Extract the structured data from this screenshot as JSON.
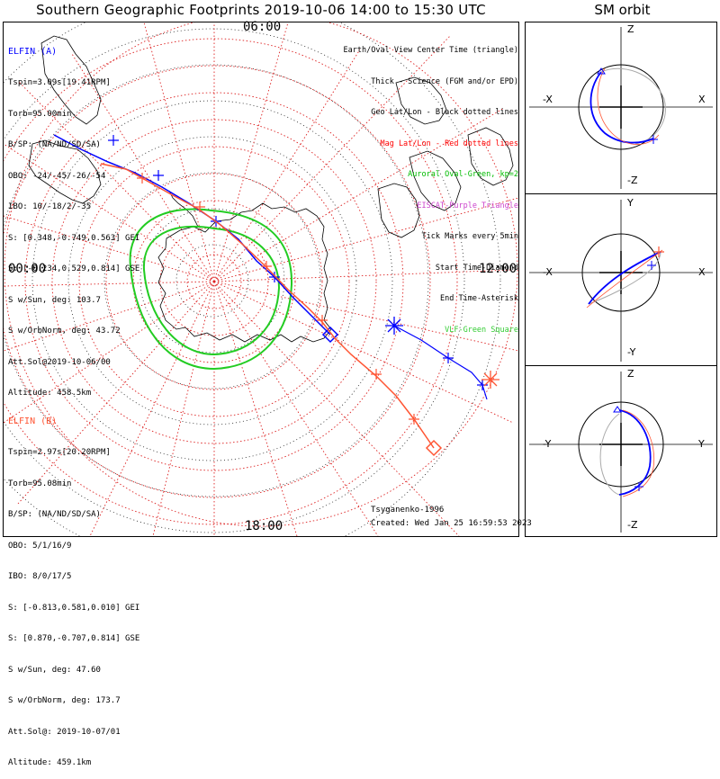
{
  "header": {
    "title": "Southern Geographic Footprints 2019-10-06 14:00 to 15:30 UTC",
    "sm_title": "SM orbit"
  },
  "clock_labels": {
    "top": "06:00",
    "left": "00:00",
    "right": "12:00",
    "bottom": "18:00"
  },
  "spacecraft": [
    {
      "name": "ELFIN (A)",
      "color": "#0000ff",
      "lines": [
        "Tspin=3.09s[19.41RPM]",
        "Torb=95.00min",
        "B/SP: (NA/ND/SD/SA)",
        "OBO: -24/-45/-26/-54",
        "IBO: 10/-18/2/-35",
        "S: [0.348,-0.749,0.563] GEI",
        "S: [-0.234,0.529,0.814] GSE",
        "S w/Sun, deg: 103.7",
        "S w/OrbNorm, deg: 43.72",
        "Att.Sol@2019-10-06/00",
        "Altitude: 458.5km"
      ]
    },
    {
      "name": "ELFIN (B)",
      "color": "#ff5533",
      "lines": [
        "Tspin=2.97s[20.20RPM]",
        "Torb=95.08min",
        "B/SP: (NA/ND/SD/SA)",
        "OBO: 5/1/16/9",
        "IBO: 8/0/17/5",
        "S: [-0.813,0.581,0.010] GEI",
        "S: [0.870,-0.707,0.814] GSE",
        "S w/Sun, deg: 47.60",
        "S w/OrbNorm, deg: 173.7",
        "Att.Sol@: 2019-10-07/01",
        "Altitude: 459.1km"
      ]
    }
  ],
  "legend": [
    {
      "text": "Earth/Oval View Center Time (triangle)",
      "color": "#000000"
    },
    {
      "text": "Thick - Science (FGM and/or EPD)",
      "color": "#000000"
    },
    {
      "text": "Geo Lat/Lon - Black dotted lines",
      "color": "#000000"
    },
    {
      "text": "Mag Lat/Lon - Red dotted lines",
      "color": "#ff0000"
    },
    {
      "text": "Auroral Oval-Green, kp=2",
      "color": "#00bb00"
    },
    {
      "text": "EISCAT-Purple Triangle",
      "color": "#cc44cc"
    },
    {
      "text": "Tick Marks every 5min",
      "color": "#000000"
    },
    {
      "text": "Start Time-Diamond",
      "color": "#000000"
    },
    {
      "text": "End Time-Asterisk",
      "color": "#000000"
    },
    {
      "text": "VLF-Green Square",
      "color": "#33cc33"
    }
  ],
  "credits": {
    "model": "Tsyganenko-1996",
    "created": "Created: Wed Jan 25 16:59:53 2023"
  },
  "sm_panels": [
    {
      "top": "Z",
      "bottom": "-Z",
      "left": "-X",
      "right": "X"
    },
    {
      "top": "Y",
      "bottom": "-Y",
      "left": "-X",
      "right": "X"
    },
    {
      "top": "Z",
      "bottom": "-Z",
      "left": "-Y",
      "right": "Y"
    }
  ],
  "colors": {
    "elfin_a": "#0000ff",
    "elfin_b": "#ff5533",
    "mag_grid": "#dd2222",
    "auroral_oval": "#22cc22",
    "orbit_backside": "#aaaaaa"
  }
}
